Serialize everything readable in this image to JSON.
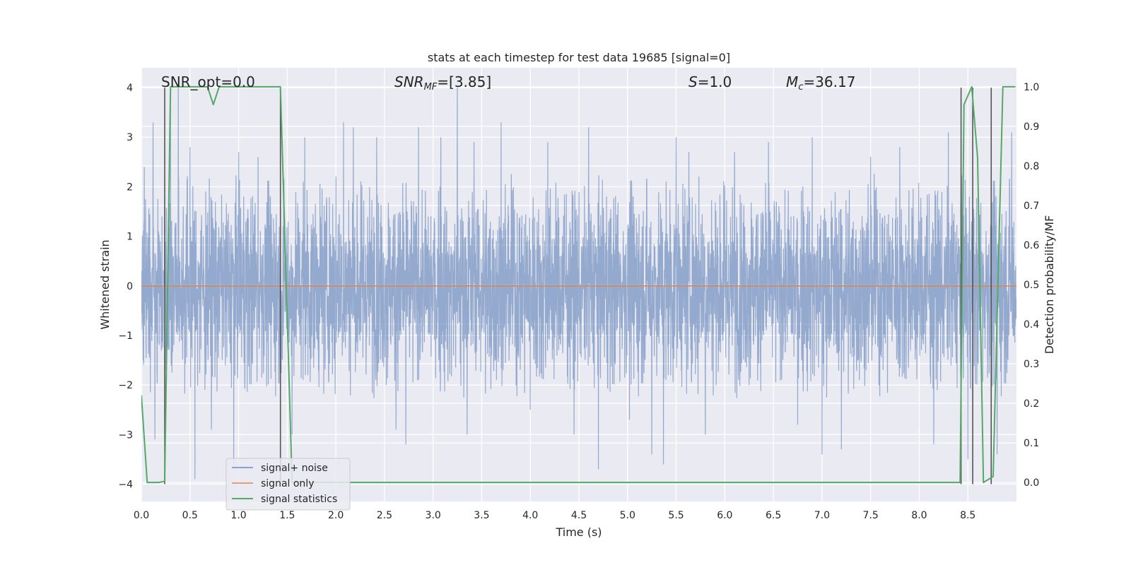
{
  "chart_data": {
    "type": "line",
    "title": "stats at each timestep for test data 19685 [signal=0]",
    "xlabel": "Time (s)",
    "ylabel": "Whitened strain",
    "y2label": "Detection probability/MF",
    "xlim": [
      0,
      9.0
    ],
    "ylim": [
      -4.35,
      4.4
    ],
    "y2lim": [
      -0.048,
      1.048
    ],
    "xticks": [
      0.0,
      0.5,
      1.0,
      1.5,
      2.0,
      2.5,
      3.0,
      3.5,
      4.0,
      4.5,
      5.0,
      5.5,
      6.0,
      6.5,
      7.0,
      7.5,
      8.0,
      8.5
    ],
    "xtick_labels": [
      "0.0",
      "0.5",
      "1.0",
      "1.5",
      "2.0",
      "2.5",
      "3.0",
      "3.5",
      "4.0",
      "4.5",
      "5.0",
      "5.5",
      "6.0",
      "6.5",
      "7.0",
      "7.5",
      "8.0",
      "8.5"
    ],
    "yticks": [
      -4,
      -3,
      -2,
      -1,
      0,
      1,
      2,
      3,
      4
    ],
    "ytick_labels": [
      "−4",
      "−3",
      "−2",
      "−1",
      "0",
      "1",
      "2",
      "3",
      "4"
    ],
    "y2ticks": [
      0.0,
      0.1,
      0.2,
      0.3,
      0.4,
      0.5,
      0.6,
      0.7,
      0.8,
      0.9,
      1.0
    ],
    "y2tick_labels": [
      "0.0",
      "0.1",
      "0.2",
      "0.3",
      "0.4",
      "0.5",
      "0.6",
      "0.7",
      "0.8",
      "0.9",
      "1.0"
    ],
    "grid": true,
    "legend_position": "lower-left",
    "annotations": {
      "snr_opt": "SNR_opt=0.0",
      "snr_mf_label": "SNR",
      "snr_mf_sub": "MF",
      "snr_mf_value": "=[3.85]",
      "s_label": "S",
      "s_value": "=1.0",
      "mc_label": "M",
      "mc_sub": "c",
      "mc_value": "=36.17"
    },
    "series": [
      {
        "name": "signal+ noise",
        "axis": "left",
        "color": "#4c72b0",
        "description": "whitened noise, approx. ±1.6 band with spikes to about ±4",
        "spike_peaks": [
          [
            0.03,
            2.4
          ],
          [
            0.12,
            3.3
          ],
          [
            0.14,
            -3.1
          ],
          [
            0.3,
            3.6
          ],
          [
            0.38,
            4.0
          ],
          [
            0.5,
            2.8
          ],
          [
            0.55,
            -3.9
          ],
          [
            0.72,
            -2.9
          ],
          [
            0.95,
            -3.6
          ],
          [
            1.0,
            2.7
          ],
          [
            1.2,
            2.6
          ],
          [
            1.55,
            -3.0
          ],
          [
            1.68,
            3.0
          ],
          [
            2.08,
            3.3
          ],
          [
            2.18,
            3.2
          ],
          [
            2.42,
            3.0
          ],
          [
            2.62,
            -2.9
          ],
          [
            2.72,
            -3.2
          ],
          [
            2.85,
            3.2
          ],
          [
            3.08,
            3.0
          ],
          [
            3.25,
            4.0
          ],
          [
            3.35,
            -3.0
          ],
          [
            3.42,
            2.9
          ],
          [
            3.7,
            3.3
          ],
          [
            4.0,
            -2.5
          ],
          [
            4.18,
            2.9
          ],
          [
            4.45,
            -3.0
          ],
          [
            4.6,
            3.2
          ],
          [
            4.7,
            -3.7
          ],
          [
            5.02,
            -2.7
          ],
          [
            5.25,
            -3.4
          ],
          [
            5.37,
            -3.6
          ],
          [
            5.5,
            3.0
          ],
          [
            5.63,
            2.7
          ],
          [
            5.8,
            -3.0
          ],
          [
            6.1,
            2.7
          ],
          [
            6.45,
            2.9
          ],
          [
            6.75,
            -2.8
          ],
          [
            6.9,
            3.0
          ],
          [
            7.0,
            -3.4
          ],
          [
            7.2,
            -3.3
          ],
          [
            7.5,
            2.6
          ],
          [
            7.8,
            2.8
          ],
          [
            8.15,
            -3.2
          ],
          [
            8.3,
            3.1
          ],
          [
            8.5,
            -3.5
          ],
          [
            8.8,
            -3.4
          ],
          [
            8.95,
            3.1
          ]
        ]
      },
      {
        "name": "signal only",
        "axis": "left",
        "color": "#dd8452",
        "x": [
          0.0,
          9.0
        ],
        "y": [
          0.0,
          0.0
        ]
      },
      {
        "name": "signal statistics",
        "axis": "right",
        "color": "#55a868",
        "x": [
          0.0,
          0.06,
          0.18,
          0.24,
          0.3,
          0.68,
          0.74,
          0.8,
          1.43,
          1.55,
          1.6,
          8.42,
          8.46,
          8.54,
          8.6,
          8.66,
          8.76,
          8.86,
          8.99
        ],
        "y": [
          0.22,
          0.0,
          0.0,
          0.003,
          1.0,
          1.0,
          0.955,
          1.0,
          1.0,
          0.0,
          0.0,
          0.0,
          0.955,
          1.0,
          0.82,
          0.0,
          0.015,
          1.0,
          1.0
        ]
      }
    ],
    "vertical_markers": [
      {
        "x": 0.24,
        "color": "#555555"
      },
      {
        "x": 1.43,
        "color": "#555555"
      },
      {
        "x": 8.43,
        "color": "#555555"
      },
      {
        "x": 8.55,
        "color": "#555555"
      },
      {
        "x": 8.74,
        "color": "#555555"
      }
    ]
  }
}
